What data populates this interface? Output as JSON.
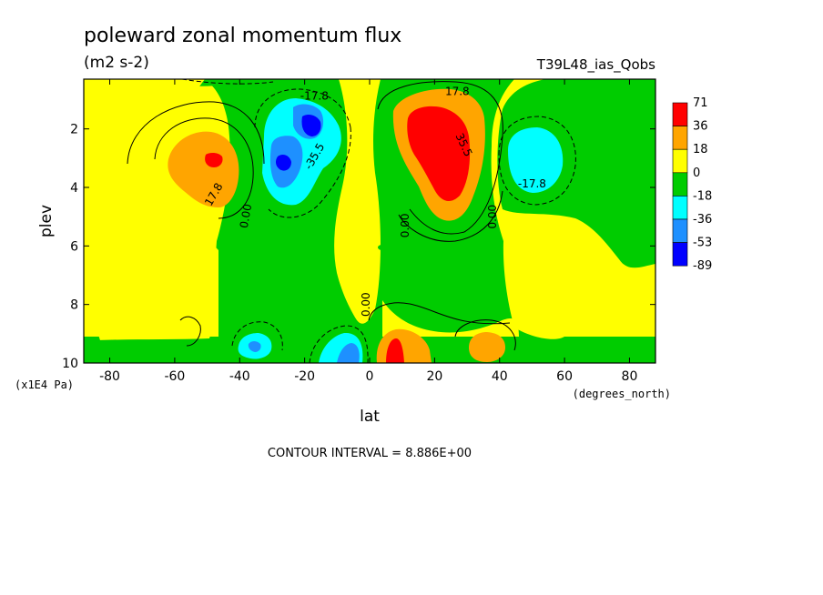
{
  "chart_data": {
    "type": "contour",
    "title": "poleward zonal momentum flux",
    "subtitle": "(m2 s-2)",
    "dataset_label": "T39L48_ias_Qobs",
    "xlabel": "lat",
    "xunit": "(degrees_north)",
    "ylabel": "plev",
    "yunit": "(x1E4 Pa)",
    "xlim": [
      -88,
      88
    ],
    "ylim": [
      10,
      0.3
    ],
    "x_ticks": [
      -80,
      -60,
      -40,
      -20,
      0,
      20,
      40,
      60,
      80
    ],
    "y_ticks": [
      2,
      4,
      6,
      8,
      10
    ],
    "x_tick_labels": [
      "-80",
      "-60",
      "-40",
      "-20",
      "0",
      "20",
      "40",
      "60",
      "80"
    ],
    "y_tick_labels": [
      "2",
      "4",
      "6",
      "8",
      "10"
    ],
    "contour_interval_text": "CONTOUR INTERVAL = 8.886E+00",
    "colorbar": {
      "levels": [
        "71",
        "36",
        "18",
        "0",
        "-18",
        "-36",
        "-53",
        "-89"
      ],
      "colors": [
        "#ff0000",
        "#ffa500",
        "#ffff00",
        "#00cc00",
        "#00ffff",
        "#1e90ff",
        "#0000ff"
      ]
    },
    "contour_labels": [
      {
        "text": "-17.8",
        "x": -17,
        "y": 1.0,
        "rot": 0
      },
      {
        "text": "17.8",
        "x": 27,
        "y": 0.85,
        "rot": 0
      },
      {
        "text": "-35.5",
        "x": -16,
        "y": 3.0,
        "rot": -60
      },
      {
        "text": "35.5",
        "x": 28,
        "y": 2.6,
        "rot": 65
      },
      {
        "text": "17.8",
        "x": -47,
        "y": 4.3,
        "rot": -60
      },
      {
        "text": "-17.8",
        "x": 50,
        "y": 4.0,
        "rot": 0
      },
      {
        "text": "0.00",
        "x": -37,
        "y": 5.0,
        "rot": -80
      },
      {
        "text": "0.00",
        "x": 12,
        "y": 5.3,
        "rot": -90
      },
      {
        "text": "0.00",
        "x": 39,
        "y": 5.0,
        "rot": -90
      },
      {
        "text": "0.00",
        "x": 0,
        "y": 8.0,
        "rot": -90
      }
    ],
    "features": [
      {
        "sign": "positive",
        "level": "max",
        "center": [
          -49,
          2.9
        ],
        "peak": "36 to 71"
      },
      {
        "sign": "negative",
        "level": "min",
        "center": [
          -27,
          2.9
        ],
        "peak": "-53 to -89"
      },
      {
        "sign": "negative",
        "level": "min",
        "center": [
          -18,
          1.8
        ],
        "peak": "-53 to -89"
      },
      {
        "sign": "positive",
        "level": "max",
        "center": [
          25,
          2.8
        ],
        "peak": "above 71"
      },
      {
        "sign": "negative",
        "level": "min",
        "center": [
          50,
          3.0
        ],
        "peak": "-18 to -36"
      },
      {
        "sign": "positive",
        "level": "max",
        "center": [
          8,
          9.6
        ],
        "peak": "above 71"
      },
      {
        "sign": "positive",
        "level": "max",
        "center": [
          35,
          9.3
        ],
        "peak": "18 to 36"
      },
      {
        "sign": "negative",
        "level": "min",
        "center": [
          -7,
          9.6
        ],
        "peak": "-36 to -53"
      },
      {
        "sign": "negative",
        "level": "min",
        "center": [
          -33,
          9.4
        ],
        "peak": "-18 to -36"
      }
    ]
  }
}
